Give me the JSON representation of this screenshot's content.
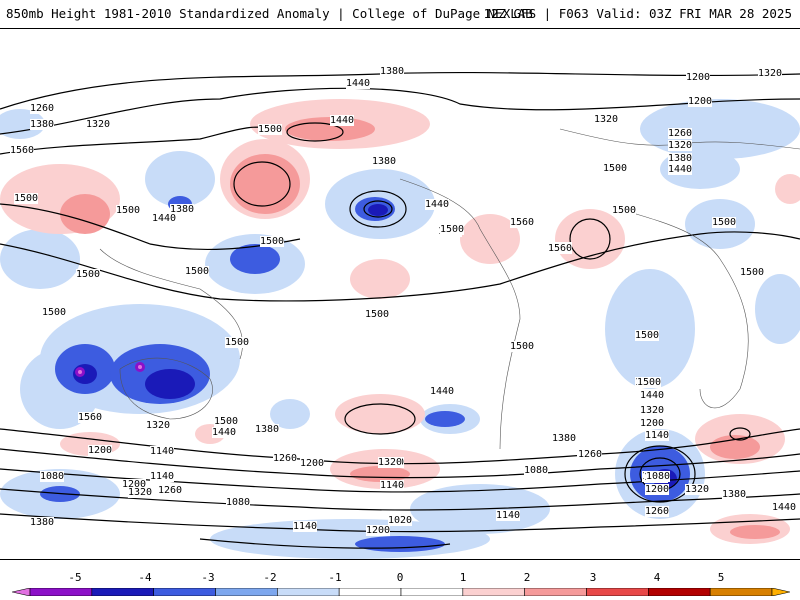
{
  "header": {
    "title": "850mb Height 1981-2010 Standardized Anomaly | College of DuPage NEXLAB",
    "run_info": "12Z GFS | F063 Valid: 03Z FRI MAR 28 2025"
  },
  "contour_labels": [
    "1380",
    "1320",
    "1440",
    "1260",
    "1380",
    "1320",
    "1500",
    "1560",
    "1500",
    "1380",
    "1440",
    "1500",
    "1500",
    "1380",
    "1440",
    "1500",
    "1500",
    "1560",
    "1500",
    "1560",
    "1440",
    "1500",
    "1500",
    "1500",
    "1500",
    "1500",
    "1500",
    "1500",
    "1500",
    "1440",
    "1500",
    "1440",
    "1320",
    "1200",
    "1380",
    "1320",
    "1200",
    "1140",
    "1140",
    "1080",
    "1200",
    "1140",
    "1080",
    "1320",
    "1260",
    "1200",
    "1260",
    "1320",
    "1260",
    "1080",
    "1080",
    "1020",
    "1200",
    "1140",
    "1140",
    "1380",
    "1260",
    "1320",
    "1380",
    "1440",
    "1200",
    "1080",
    "1260",
    "1560",
    "1500",
    "1440",
    "1380",
    "1320",
    "1200",
    "1140",
    "1080",
    "1200",
    "1320",
    "1380",
    "1440",
    "1320",
    "1200",
    "1260",
    "1560",
    "1500",
    "1500",
    "1500"
  ],
  "colorbar": {
    "ticks": [
      "-5",
      "-4",
      "-3",
      "-2",
      "-1",
      "0",
      "1",
      "2",
      "3",
      "4",
      "5"
    ],
    "colors": [
      "#e070e0",
      "#8c10c8",
      "#1a1ab8",
      "#3d5ce0",
      "#7da7ee",
      "#c8dcf8",
      "#ffffff",
      "#ffffff",
      "#fbd0d0",
      "#f59a9a",
      "#e84848",
      "#b30000",
      "#d88000",
      "#ffb000"
    ]
  },
  "legend_meta": {
    "positive_anomaly_color": "#f59a9a",
    "negative_anomaly_color": "#3d5ce0",
    "contour_color": "#000000"
  }
}
